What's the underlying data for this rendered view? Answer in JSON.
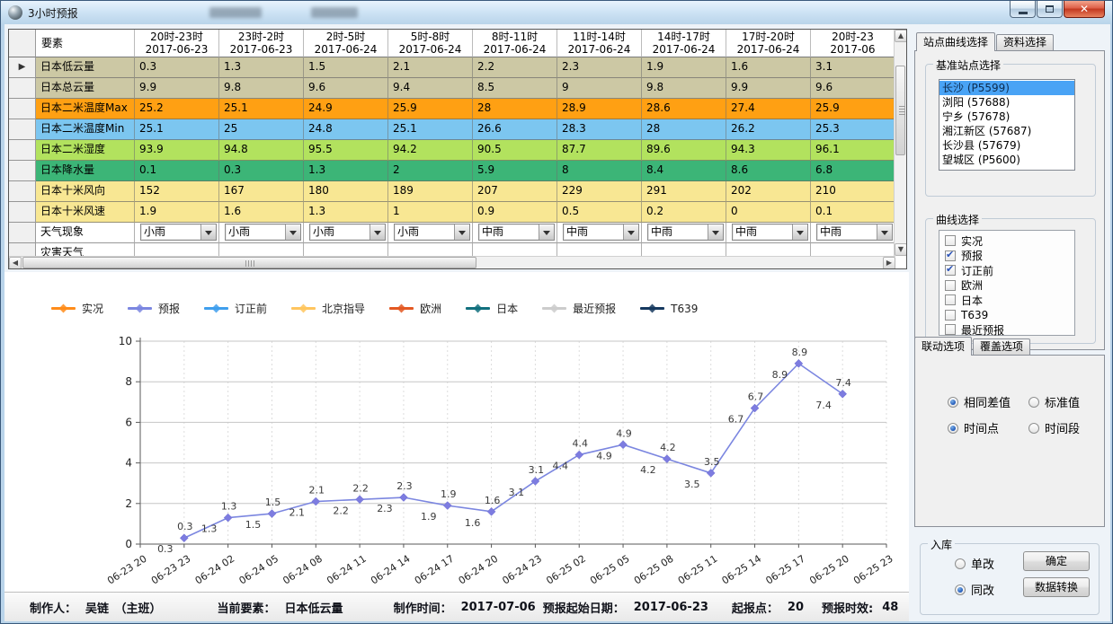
{
  "window": {
    "title": "3小时预报",
    "icons": {
      "minimize": "minimize-icon",
      "maximize": "maximize-icon",
      "close": "close-icon"
    }
  },
  "table": {
    "corner": "要素",
    "row_selector_glyph": "▶",
    "columns": [
      {
        "period": "20时-23时",
        "date": "2017-06-23"
      },
      {
        "period": "23时-2时",
        "date": "2017-06-23"
      },
      {
        "period": "2时-5时",
        "date": "2017-06-24"
      },
      {
        "period": "5时-8时",
        "date": "2017-06-24"
      },
      {
        "period": "8时-11时",
        "date": "2017-06-24"
      },
      {
        "period": "11时-14时",
        "date": "2017-06-24"
      },
      {
        "period": "14时-17时",
        "date": "2017-06-24"
      },
      {
        "period": "17时-20时",
        "date": "2017-06-24"
      },
      {
        "period": "20时-23",
        "date": "2017-06"
      }
    ],
    "rows": [
      {
        "label": "日本低云量",
        "bg": "#ccc8a4",
        "color_key": "tan",
        "values": [
          "0.3",
          "1.3",
          "1.5",
          "2.1",
          "2.2",
          "2.3",
          "1.9",
          "1.6",
          "3.1"
        ]
      },
      {
        "label": "日本总云量",
        "bg": "#ccc8a4",
        "color_key": "tan",
        "values": [
          "9.9",
          "9.8",
          "9.6",
          "9.4",
          "8.5",
          "9",
          "9.8",
          "9.9",
          "9.6"
        ]
      },
      {
        "label": "日本二米温度Max",
        "bg": "#ffa013",
        "color_key": "orange",
        "values": [
          "25.2",
          "25.1",
          "24.9",
          "25.9",
          "28",
          "28.9",
          "28.6",
          "27.4",
          "25.9"
        ]
      },
      {
        "label": "日本二米温度Min",
        "bg": "#7cc6f0",
        "color_key": "blue",
        "values": [
          "25.1",
          "25",
          "24.8",
          "25.1",
          "26.6",
          "28.3",
          "28",
          "26.2",
          "25.3"
        ]
      },
      {
        "label": "日本二米湿度",
        "bg": "#b2e25e",
        "color_key": "lgreen",
        "values": [
          "93.9",
          "94.8",
          "95.5",
          "94.2",
          "90.5",
          "87.7",
          "89.6",
          "94.3",
          "96.1"
        ]
      },
      {
        "label": "日本降水量",
        "bg": "#3cb577",
        "color_key": "green",
        "values": [
          "0.1",
          "0.3",
          "1.3",
          "2",
          "5.9",
          "8",
          "8.4",
          "8.6",
          "6.8"
        ]
      },
      {
        "label": "日本十米风向",
        "bg": "#f8e793",
        "color_key": "yellow",
        "values": [
          "152",
          "167",
          "180",
          "189",
          "207",
          "229",
          "291",
          "202",
          "210"
        ]
      },
      {
        "label": "日本十米风速",
        "bg": "#f8e793",
        "color_key": "yellow",
        "values": [
          "1.9",
          "1.6",
          "1.3",
          "1",
          "0.9",
          "0.5",
          "0.2",
          "0",
          "0.1"
        ]
      },
      {
        "label": "天气现象",
        "type": "dropdown",
        "bg": "#ffffff",
        "color_key": "white",
        "values": [
          "小雨",
          "小雨",
          "小雨",
          "小雨",
          "中雨",
          "中雨",
          "中雨",
          "中雨",
          "中雨"
        ]
      },
      {
        "label": "灾害天气",
        "type": "partial",
        "bg": "#ffffff",
        "color_key": "white",
        "values": [
          "",
          "",
          "",
          "",
          "",
          "",
          "",
          "",
          ""
        ]
      }
    ]
  },
  "chart_data": {
    "type": "line",
    "title": "",
    "xlabel": "",
    "ylabel": "",
    "ylim": [
      0,
      10
    ],
    "yticks": [
      0,
      2,
      4,
      6,
      8,
      10
    ],
    "grid": true,
    "legend_position": "top",
    "x_labels": [
      "06-23 20",
      "06-23 23",
      "06-24 02",
      "06-24 05",
      "06-24 08",
      "06-24 11",
      "06-24 14",
      "06-24 17",
      "06-24 20",
      "06-24 23",
      "06-25 02",
      "06-25 05",
      "06-25 08",
      "06-25 11",
      "06-25 14",
      "06-25 17",
      "06-25 20",
      "06-25 23"
    ],
    "x_start_index": 1,
    "series": [
      {
        "name": "预报",
        "color": "#7b86e0",
        "marker": "diamond",
        "values": [
          0.3,
          1.3,
          1.5,
          2.1,
          2.2,
          2.3,
          1.9,
          1.6,
          3.1,
          4.4,
          4.9,
          4.2,
          3.5,
          6.7,
          8.9,
          7.4
        ]
      },
      {
        "name": "订正前",
        "color": "#7b86e0",
        "marker": "diamond",
        "values": [
          0.3,
          1.3,
          1.5,
          2.1,
          2.2,
          2.3,
          1.9,
          1.6,
          3.1,
          4.4,
          4.9,
          4.2,
          3.5,
          6.7,
          8.9,
          7.4
        ]
      }
    ],
    "legend": [
      {
        "label": "实况",
        "color": "#ff8c1a"
      },
      {
        "label": "预报",
        "color": "#7b86e0"
      },
      {
        "label": "订正前",
        "color": "#3f9fed"
      },
      {
        "label": "北京指导",
        "color": "#ffc55e"
      },
      {
        "label": "欧洲",
        "color": "#e35822"
      },
      {
        "label": "日本",
        "color": "#12707e"
      },
      {
        "label": "最近预报",
        "color": "#cccccc"
      },
      {
        "label": "T639",
        "color": "#16395f"
      }
    ]
  },
  "sidebar": {
    "tabcontrol1": {
      "tabs": [
        "站点曲线选择",
        "资料选择"
      ],
      "active_index": 0
    },
    "station_group": {
      "title": "基准站点选择",
      "items": [
        {
          "label": "长沙 (P5599)",
          "selected": true
        },
        {
          "label": "浏阳 (57688)",
          "selected": false
        },
        {
          "label": "宁乡 (57678)",
          "selected": false
        },
        {
          "label": "湘江新区 (57687)",
          "selected": false
        },
        {
          "label": "长沙县 (57679)",
          "selected": false
        },
        {
          "label": "望城区 (P5600)",
          "selected": false
        }
      ]
    },
    "curve_group": {
      "title": "曲线选择",
      "items": [
        {
          "label": "实况",
          "checked": false
        },
        {
          "label": "预报",
          "checked": true
        },
        {
          "label": "订正前",
          "checked": true
        },
        {
          "label": "欧洲",
          "checked": false
        },
        {
          "label": "日本",
          "checked": false
        },
        {
          "label": "T639",
          "checked": false
        },
        {
          "label": "最近预报",
          "checked": false
        },
        {
          "label": "北京指导",
          "checked": false
        }
      ]
    },
    "tabcontrol2": {
      "tabs": [
        "联动选项",
        "覆盖选项"
      ],
      "active_index": 0
    },
    "link_options": {
      "radios": [
        {
          "label": "相同差值",
          "selected": true
        },
        {
          "label": "标准值",
          "selected": false
        },
        {
          "label": "时间点",
          "selected": true
        },
        {
          "label": "时间段",
          "selected": false
        }
      ]
    },
    "storage_group": {
      "title": "入库",
      "radios": [
        {
          "label": "单改",
          "selected": false
        },
        {
          "label": "同改",
          "selected": true
        }
      ],
      "buttons": [
        {
          "label": "确定"
        },
        {
          "label": "数据转换"
        }
      ]
    }
  },
  "statusbar": {
    "items": [
      {
        "label": "制作人：",
        "value": "吴链　（主班）"
      },
      {
        "label": "当前要素：",
        "value": "日本低云量"
      },
      {
        "label": "制作时间：",
        "value": "2017-07-06"
      },
      {
        "label": "预报起始日期：",
        "value": "2017-06-23"
      },
      {
        "label": "起报点：",
        "value": "20"
      },
      {
        "label": "预报时效:",
        "value": "48"
      }
    ]
  }
}
